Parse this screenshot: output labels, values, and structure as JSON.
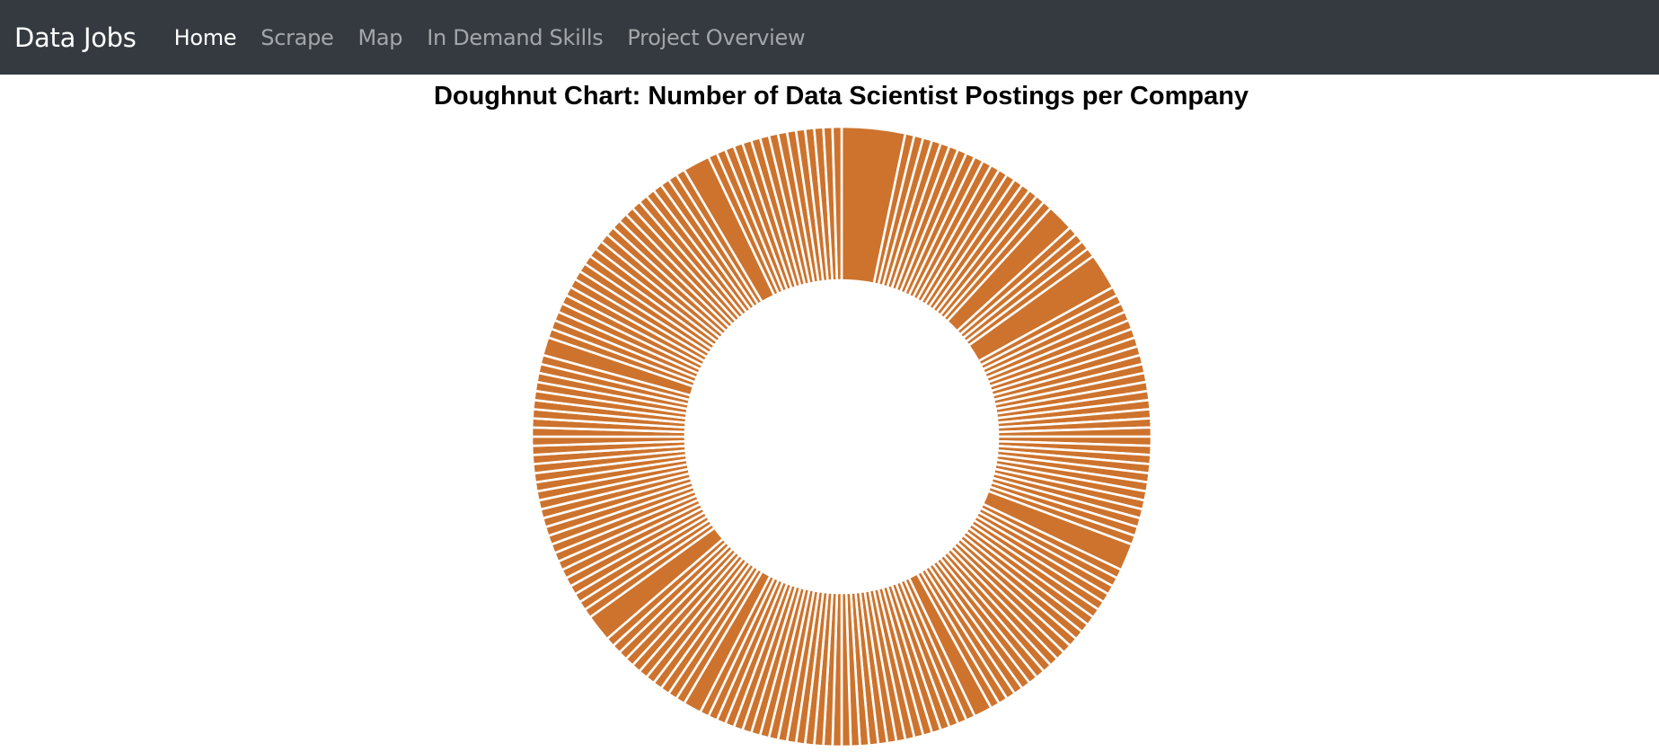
{
  "navbar": {
    "brand": "Data Jobs",
    "items": [
      {
        "label": "Home",
        "active": true
      },
      {
        "label": "Scrape",
        "active": false
      },
      {
        "label": "Map",
        "active": false
      },
      {
        "label": "In Demand Skills",
        "active": false
      },
      {
        "label": "Project Overview",
        "active": false
      }
    ],
    "background": "#343a40"
  },
  "chart_data": {
    "type": "pie",
    "subtype": "doughnut",
    "title": "Doughnut Chart: Number of Data Scientist Postings per Company",
    "color": "#cd732d",
    "separator_color": "#ffffff",
    "labels_shown": false,
    "legend": "none",
    "values": [
      7,
      1,
      1,
      1,
      1,
      1,
      1,
      1,
      1,
      1,
      1,
      1,
      1,
      1,
      1,
      1,
      1,
      1,
      1,
      3,
      1,
      1,
      1,
      1,
      4,
      1,
      1,
      1,
      1,
      1,
      1,
      1,
      1,
      1,
      1,
      1,
      1,
      1,
      1,
      1,
      1,
      1,
      1,
      1,
      1,
      1,
      1,
      1,
      1,
      1,
      1,
      1,
      1,
      1,
      3,
      1,
      1,
      1,
      1,
      1,
      1,
      1,
      1,
      1,
      1,
      1,
      1,
      1,
      1,
      1,
      1,
      1,
      1,
      1,
      1,
      1,
      2,
      1,
      1,
      1,
      1,
      1,
      1,
      1,
      1,
      1,
      1,
      1,
      1,
      1,
      1,
      1,
      1,
      1,
      1,
      1,
      1,
      1,
      1,
      1,
      1,
      1,
      1,
      1,
      1,
      1,
      1,
      1,
      2,
      1,
      1,
      1,
      1,
      1,
      1,
      1,
      1,
      1,
      1,
      1,
      3,
      1,
      1,
      1,
      1,
      1,
      1,
      1,
      1,
      1,
      1,
      1,
      1,
      1,
      1,
      1,
      1,
      1,
      1,
      1,
      1,
      1,
      1,
      1,
      1,
      1,
      1,
      1,
      1,
      1,
      1,
      2,
      1,
      1,
      1,
      1,
      1,
      1,
      1,
      1,
      1,
      1,
      1,
      1,
      1,
      1,
      1,
      1,
      1,
      1,
      1,
      1,
      1,
      1,
      1,
      1,
      3,
      1,
      1,
      1,
      1,
      1,
      1,
      1,
      1,
      1,
      1,
      1,
      1,
      1,
      1,
      1
    ]
  }
}
